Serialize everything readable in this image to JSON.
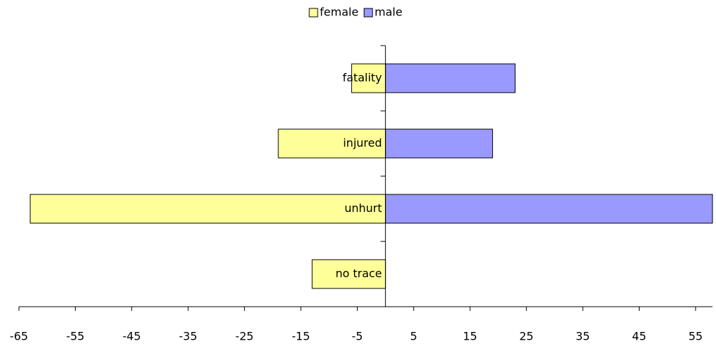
{
  "chart_data": {
    "type": "bar",
    "orientation": "horizontal",
    "categories": [
      "fatality",
      "injured",
      "unhurt",
      "no trace"
    ],
    "series": [
      {
        "name": "female",
        "color": "#ffff99",
        "values": [
          -6,
          -19,
          -63,
          -13
        ]
      },
      {
        "name": "male",
        "color": "#9999ff",
        "values": [
          23,
          19,
          58,
          0
        ]
      }
    ],
    "xlim": [
      -65,
      58
    ],
    "xticks": [
      -65,
      -55,
      -45,
      -35,
      -25,
      -15,
      -5,
      5,
      15,
      25,
      35,
      45,
      55
    ],
    "legend": "top"
  }
}
